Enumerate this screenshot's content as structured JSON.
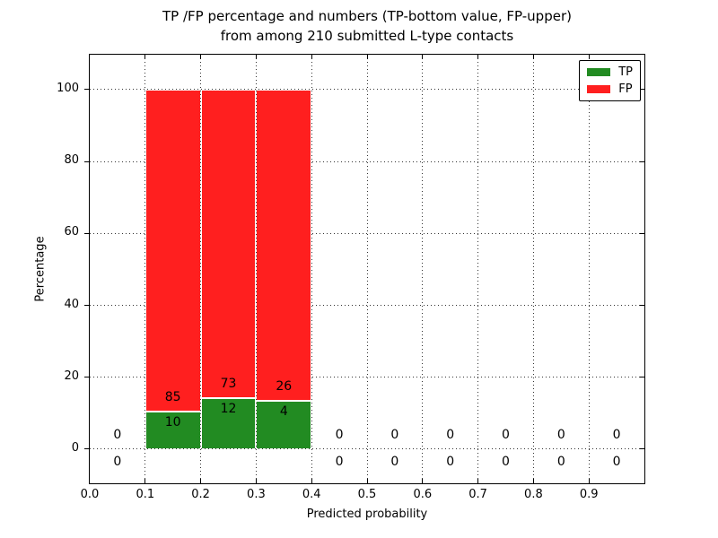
{
  "title": {
    "line1": "TP /FP percentage and numbers (TP-bottom value, FP-upper)",
    "line2": "from among 210 submitted L-type contacts"
  },
  "axes": {
    "xlabel": "Predicted probability",
    "ylabel": "Percentage"
  },
  "legend": {
    "items": [
      {
        "label": "TP",
        "color": "#228b22"
      },
      {
        "label": "FP",
        "color": "#ff1f1f"
      }
    ]
  },
  "chart_data": {
    "type": "bar",
    "stacked": true,
    "title": "TP /FP percentage and numbers (TP-bottom value, FP-upper) from among 210 submitted L-type contacts",
    "xlabel": "Predicted probability",
    "ylabel": "Percentage",
    "xlim": [
      0.0,
      1.0
    ],
    "ylim": [
      -9.5,
      109.7
    ],
    "grid": "dotted",
    "legend_position": "upper-right",
    "total_contacts": 210,
    "series_colors": {
      "tp": "#228b22",
      "fp": "#ff1f1f"
    },
    "xticks": [
      {
        "pos": 0.0,
        "label": "0.0"
      },
      {
        "pos": 0.1,
        "label": "0.1"
      },
      {
        "pos": 0.2,
        "label": "0.2"
      },
      {
        "pos": 0.3,
        "label": "0.3"
      },
      {
        "pos": 0.4,
        "label": "0.4"
      },
      {
        "pos": 0.5,
        "label": "0.5"
      },
      {
        "pos": 0.6,
        "label": "0.6"
      },
      {
        "pos": 0.7,
        "label": "0.7"
      },
      {
        "pos": 0.8,
        "label": "0.8"
      },
      {
        "pos": 0.9,
        "label": "0.9"
      }
    ],
    "yticks": [
      {
        "pos": 0,
        "label": "0"
      },
      {
        "pos": 20,
        "label": "20"
      },
      {
        "pos": 40,
        "label": "40"
      },
      {
        "pos": 60,
        "label": "60"
      },
      {
        "pos": 80,
        "label": "80"
      },
      {
        "pos": 100,
        "label": "100"
      }
    ],
    "bins": [
      {
        "x0": 0.0,
        "x1": 0.1,
        "tp_count": 0,
        "fp_count": 0,
        "tp_pct": 0,
        "fp_pct": 0
      },
      {
        "x0": 0.1,
        "x1": 0.2,
        "tp_count": 10,
        "fp_count": 85,
        "tp_pct": 10.53,
        "fp_pct": 89.47
      },
      {
        "x0": 0.2,
        "x1": 0.3,
        "tp_count": 12,
        "fp_count": 73,
        "tp_pct": 14.12,
        "fp_pct": 85.88
      },
      {
        "x0": 0.3,
        "x1": 0.4,
        "tp_count": 4,
        "fp_count": 26,
        "tp_pct": 13.33,
        "fp_pct": 86.67
      },
      {
        "x0": 0.4,
        "x1": 0.5,
        "tp_count": 0,
        "fp_count": 0,
        "tp_pct": 0,
        "fp_pct": 0
      },
      {
        "x0": 0.5,
        "x1": 0.6,
        "tp_count": 0,
        "fp_count": 0,
        "tp_pct": 0,
        "fp_pct": 0
      },
      {
        "x0": 0.6,
        "x1": 0.7,
        "tp_count": 0,
        "fp_count": 0,
        "tp_pct": 0,
        "fp_pct": 0
      },
      {
        "x0": 0.7,
        "x1": 0.8,
        "tp_count": 0,
        "fp_count": 0,
        "tp_pct": 0,
        "fp_pct": 0
      },
      {
        "x0": 0.8,
        "x1": 0.9,
        "tp_count": 0,
        "fp_count": 0,
        "tp_pct": 0,
        "fp_pct": 0
      },
      {
        "x0": 0.9,
        "x1": 1.0,
        "tp_count": 0,
        "fp_count": 0,
        "tp_pct": 0,
        "fp_pct": 0
      }
    ]
  }
}
